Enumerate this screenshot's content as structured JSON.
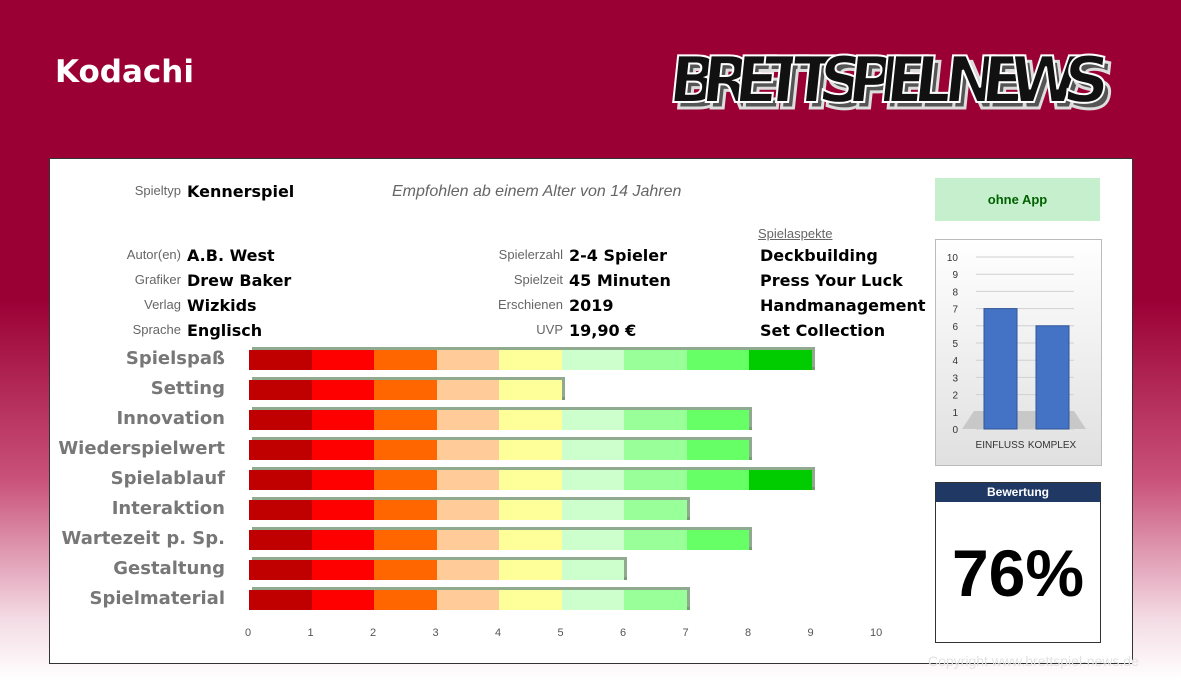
{
  "header": {
    "title": "Kodachi",
    "logo_text": "BRETTSPIEL NEWS"
  },
  "info": {
    "spieltyp_label": "Spieltyp",
    "spieltyp": "Kennerspiel",
    "age_text": "Empfohlen ab einem Alter von 14 Jahren",
    "autor_label": "Autor(en)",
    "autor": "A.B. West",
    "grafiker_label": "Grafiker",
    "grafiker": "Drew Baker",
    "verlag_label": "Verlag",
    "verlag": "Wizkids",
    "sprache_label": "Sprache",
    "sprache": "Englisch",
    "spielerzahl_label": "Spielerzahl",
    "spielerzahl": "2-4 Spieler",
    "spielzeit_label": "Spielzeit",
    "spielzeit": "45 Minuten",
    "erschienen_label": "Erschienen",
    "erschienen": "2019",
    "uvp_label": "UVP",
    "uvp": "19,90 €"
  },
  "aspects": {
    "heading": "Spielaspekte",
    "items": [
      "Deckbuilding",
      "Press Your Luck",
      "Handmanagement",
      "Set Collection"
    ]
  },
  "app_badge": "ohne App",
  "rating": {
    "label": "Bewertung",
    "value": "76%"
  },
  "copyright": "Copyright www.brettspiel-news.de",
  "colors": {
    "header_bg": "#9b0035",
    "bar_segments": [
      "#c00000",
      "#ff0000",
      "#ff6600",
      "#ffcc99",
      "#ffff99",
      "#ccffcc",
      "#99ff99",
      "#66ff66",
      "#00cc00",
      "#009900"
    ],
    "mini_bar": "#4472c4",
    "rating_header": "#1f3864"
  },
  "chart_data": [
    {
      "type": "bar",
      "orientation": "horizontal",
      "categories": [
        "Spielspaß",
        "Setting",
        "Innovation",
        "Wiederspielwert",
        "Spielablauf",
        "Interaktion",
        "Wartezeit p. Sp.",
        "Gestaltung",
        "Spielmaterial"
      ],
      "values": [
        9,
        5,
        8,
        8,
        9,
        7,
        8,
        6,
        7
      ],
      "xlim": [
        0,
        10
      ],
      "xticks": [
        "0",
        "1",
        "2",
        "3",
        "4",
        "5",
        "6",
        "7",
        "8",
        "9",
        "10"
      ]
    },
    {
      "type": "bar",
      "categories": [
        "EINFLUSS",
        "KOMPLEX"
      ],
      "values": [
        7,
        6
      ],
      "ylim": [
        0,
        10
      ],
      "yticks": [
        "0",
        "1",
        "2",
        "3",
        "4",
        "5",
        "6",
        "7",
        "8",
        "9",
        "10"
      ]
    }
  ]
}
